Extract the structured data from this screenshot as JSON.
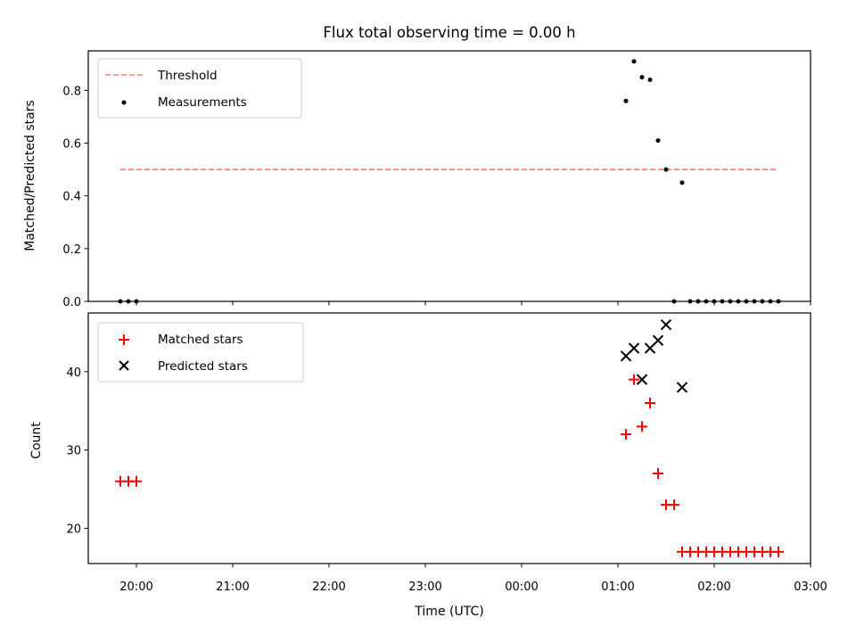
{
  "chart_data": {
    "title": "Flux total observing time = 0.00 h",
    "xlabel": "Time (UTC)",
    "x_ticks": [
      "20:00",
      "21:00",
      "22:00",
      "23:00",
      "00:00",
      "01:00",
      "02:00",
      "03:00"
    ],
    "x_range": [
      "19:30",
      "03:00"
    ],
    "panels": [
      {
        "type": "scatter",
        "ylabel": "Matched/Predicted stars",
        "ylim": [
          0,
          0.95
        ],
        "y_ticks": [
          0.0,
          0.2,
          0.4,
          0.6,
          0.8
        ],
        "y_tick_labels": [
          "0.0",
          "0.2",
          "0.4",
          "0.6",
          "0.8"
        ],
        "legend": "upper-left",
        "series": [
          {
            "name": "Threshold",
            "kind": "line",
            "style": "dashed",
            "color": "#ff7f7f",
            "points": [
              {
                "x": "19:50",
                "y": 0.5
              },
              {
                "x": "02:40",
                "y": 0.5
              }
            ]
          },
          {
            "name": "Measurements",
            "kind": "dots",
            "color": "#000000",
            "points": [
              {
                "x": "19:50",
                "y": 0.0
              },
              {
                "x": "19:55",
                "y": 0.0
              },
              {
                "x": "20:00",
                "y": 0.0
              },
              {
                "x": "01:05",
                "y": 0.76
              },
              {
                "x": "01:10",
                "y": 0.91
              },
              {
                "x": "01:15",
                "y": 0.85
              },
              {
                "x": "01:20",
                "y": 0.84
              },
              {
                "x": "01:25",
                "y": 0.61
              },
              {
                "x": "01:30",
                "y": 0.5
              },
              {
                "x": "01:35",
                "y": 0.0
              },
              {
                "x": "01:40",
                "y": 0.45
              },
              {
                "x": "01:45",
                "y": 0.0
              },
              {
                "x": "01:50",
                "y": 0.0
              },
              {
                "x": "01:55",
                "y": 0.0
              },
              {
                "x": "02:00",
                "y": 0.0
              },
              {
                "x": "02:05",
                "y": 0.0
              },
              {
                "x": "02:10",
                "y": 0.0
              },
              {
                "x": "02:15",
                "y": 0.0
              },
              {
                "x": "02:20",
                "y": 0.0
              },
              {
                "x": "02:25",
                "y": 0.0
              },
              {
                "x": "02:30",
                "y": 0.0
              },
              {
                "x": "02:35",
                "y": 0.0
              },
              {
                "x": "02:40",
                "y": 0.0
              }
            ]
          }
        ]
      },
      {
        "type": "scatter",
        "ylabel": "Count",
        "ylim": [
          15.5,
          47.5
        ],
        "y_ticks": [
          20,
          30,
          40
        ],
        "y_tick_labels": [
          "20",
          "30",
          "40"
        ],
        "legend": "upper-left",
        "series": [
          {
            "name": "Matched stars",
            "kind": "plus",
            "color": "#ff0000",
            "points": [
              {
                "x": "19:50",
                "y": 26
              },
              {
                "x": "19:55",
                "y": 26
              },
              {
                "x": "20:00",
                "y": 26
              },
              {
                "x": "01:05",
                "y": 32
              },
              {
                "x": "01:10",
                "y": 39
              },
              {
                "x": "01:15",
                "y": 33
              },
              {
                "x": "01:20",
                "y": 36
              },
              {
                "x": "01:25",
                "y": 27
              },
              {
                "x": "01:30",
                "y": 23
              },
              {
                "x": "01:35",
                "y": 23
              },
              {
                "x": "01:40",
                "y": 17
              },
              {
                "x": "01:45",
                "y": 17
              },
              {
                "x": "01:50",
                "y": 17
              },
              {
                "x": "01:55",
                "y": 17
              },
              {
                "x": "02:00",
                "y": 17
              },
              {
                "x": "02:05",
                "y": 17
              },
              {
                "x": "02:10",
                "y": 17
              },
              {
                "x": "02:15",
                "y": 17
              },
              {
                "x": "02:20",
                "y": 17
              },
              {
                "x": "02:25",
                "y": 17
              },
              {
                "x": "02:30",
                "y": 17
              },
              {
                "x": "02:35",
                "y": 17
              },
              {
                "x": "02:40",
                "y": 17
              }
            ]
          },
          {
            "name": "Predicted stars",
            "kind": "cross",
            "color": "#000000",
            "points": [
              {
                "x": "01:05",
                "y": 42
              },
              {
                "x": "01:10",
                "y": 43
              },
              {
                "x": "01:15",
                "y": 39
              },
              {
                "x": "01:20",
                "y": 43
              },
              {
                "x": "01:25",
                "y": 44
              },
              {
                "x": "01:30",
                "y": 46
              },
              {
                "x": "01:40",
                "y": 38
              }
            ]
          }
        ]
      }
    ]
  }
}
